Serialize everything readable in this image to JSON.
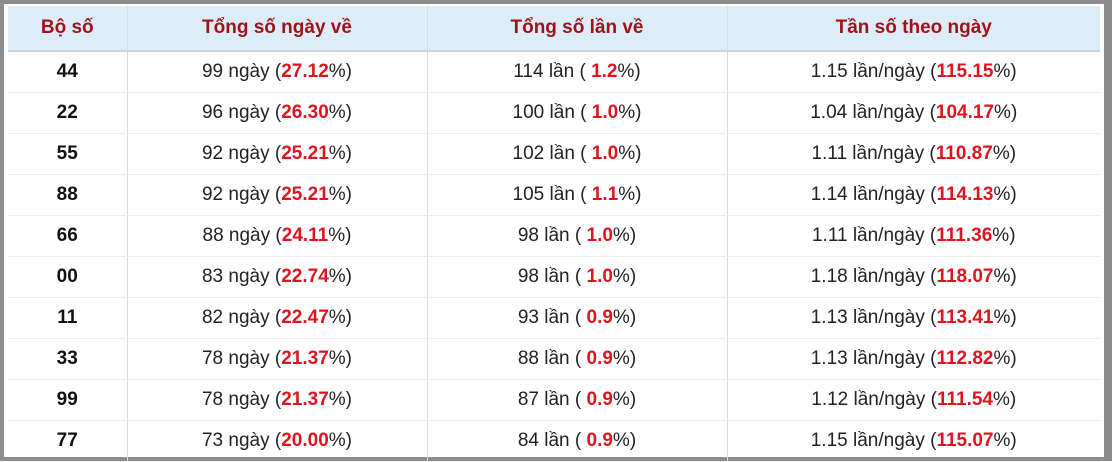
{
  "table": {
    "headers": [
      "Bộ số",
      "Tổng số ngày về",
      "Tổng số lần về",
      "Tần số theo ngày"
    ],
    "rows": [
      [
        "44",
        [
          "99 ngày (",
          "27.12",
          "%)"
        ],
        [
          "114 lần ( ",
          "1.2",
          "%)"
        ],
        [
          "1.15 lần/ngày (",
          "115.15",
          "%)"
        ]
      ],
      [
        "22",
        [
          "96 ngày (",
          "26.30",
          "%)"
        ],
        [
          "100 lần ( ",
          "1.0",
          "%)"
        ],
        [
          "1.04 lần/ngày (",
          "104.17",
          "%)"
        ]
      ],
      [
        "55",
        [
          "92 ngày (",
          "25.21",
          "%)"
        ],
        [
          "102 lần ( ",
          "1.0",
          "%)"
        ],
        [
          "1.11 lần/ngày (",
          "110.87",
          "%)"
        ]
      ],
      [
        "88",
        [
          "92 ngày (",
          "25.21",
          "%)"
        ],
        [
          "105 lần ( ",
          "1.1",
          "%)"
        ],
        [
          "1.14 lần/ngày (",
          "114.13",
          "%)"
        ]
      ],
      [
        "66",
        [
          "88 ngày (",
          "24.11",
          "%)"
        ],
        [
          "98 lần ( ",
          "1.0",
          "%)"
        ],
        [
          "1.11 lần/ngày (",
          "111.36",
          "%)"
        ]
      ],
      [
        "00",
        [
          "83 ngày (",
          "22.74",
          "%)"
        ],
        [
          "98 lần ( ",
          "1.0",
          "%)"
        ],
        [
          "1.18 lần/ngày (",
          "118.07",
          "%)"
        ]
      ],
      [
        "11",
        [
          "82 ngày (",
          "22.47",
          "%)"
        ],
        [
          "93 lần ( ",
          "0.9",
          "%)"
        ],
        [
          "1.13 lần/ngày (",
          "113.41",
          "%)"
        ]
      ],
      [
        "33",
        [
          "78 ngày (",
          "21.37",
          "%)"
        ],
        [
          "88 lần ( ",
          "0.9",
          "%)"
        ],
        [
          "1.13 lần/ngày (",
          "112.82",
          "%)"
        ]
      ],
      [
        "99",
        [
          "78 ngày (",
          "21.37",
          "%)"
        ],
        [
          "87 lần ( ",
          "0.9",
          "%)"
        ],
        [
          "1.12 lần/ngày (",
          "111.54",
          "%)"
        ]
      ],
      [
        "77",
        [
          "73 ngày (",
          "20.00",
          "%)"
        ],
        [
          "84 lần ( ",
          "0.9",
          "%)"
        ],
        [
          "1.15 lần/ngày (",
          "115.07",
          "%)"
        ]
      ]
    ]
  }
}
